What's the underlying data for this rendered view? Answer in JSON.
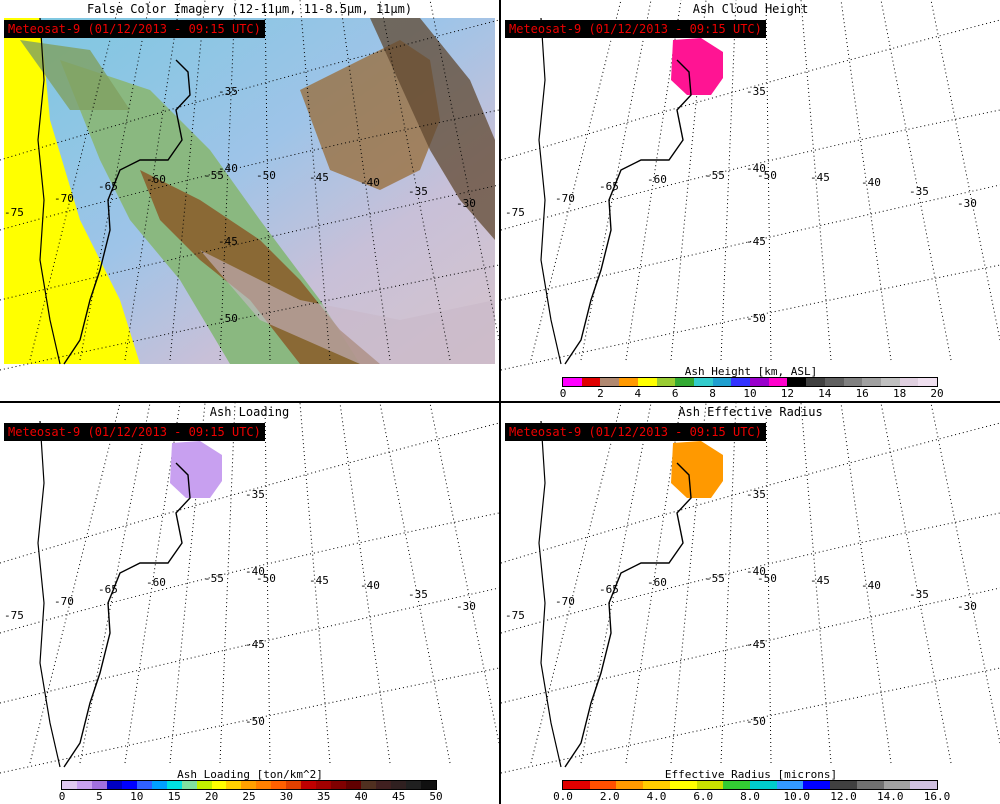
{
  "panels": [
    {
      "title": "False Color Imagery (12-11μm, 11-8.5μm, 11μm)",
      "tag": "Meteosat-9  (01/12/2013 - 09:15 UTC)"
    },
    {
      "title": "Ash Cloud Height",
      "tag": "Meteosat-9  (01/12/2013 - 09:15 UTC)"
    },
    {
      "title": "Ash Loading",
      "tag": "Meteosat-9  (01/12/2013 - 09:15 UTC)"
    },
    {
      "title": "Ash Effective Radius",
      "tag": "Meteosat-9  (01/12/2013 - 09:15 UTC)"
    }
  ],
  "grid_labels": {
    "lat": [
      "-35",
      "-40",
      "-45",
      "-50"
    ],
    "lon": [
      "-75",
      "-70",
      "-65",
      "-60",
      "-55",
      "-50",
      "-45",
      "-40",
      "-35",
      "-30"
    ]
  },
  "colorbars": {
    "height": {
      "title": "Ash Height [km, ASL]",
      "ticks": [
        "0",
        "2",
        "4",
        "6",
        "8",
        "10",
        "12",
        "14",
        "16",
        "18",
        "20"
      ],
      "colors": [
        "#ff00ff",
        "#e00000",
        "#b08870",
        "#ff9900",
        "#ffff00",
        "#99cc33",
        "#33aa33",
        "#33cccc",
        "#1f9fd0",
        "#3333ff",
        "#9900cc",
        "#ff00cc",
        "#000000",
        "#404040",
        "#606060",
        "#808080",
        "#a0a0a0",
        "#c0c0c0",
        "#e0d0e0",
        "#f0e0f0"
      ]
    },
    "loading": {
      "title": "Ash Loading [ton/km^2]",
      "ticks": [
        "0",
        "5",
        "10",
        "15",
        "20",
        "25",
        "30",
        "35",
        "40",
        "45",
        "50"
      ],
      "colors": [
        "#e0c8f0",
        "#c8a0f0",
        "#a070e0",
        "#0000c0",
        "#0000ff",
        "#3060ff",
        "#00a0ff",
        "#00e0e0",
        "#80e0a0",
        "#c0f000",
        "#ffff00",
        "#ffd000",
        "#ffa000",
        "#ff8000",
        "#ff6000",
        "#e04000",
        "#c00000",
        "#a00000",
        "#800000",
        "#600000",
        "#503020",
        "#402020",
        "#302020",
        "#202020",
        "#101010"
      ]
    },
    "radius": {
      "title": "Effective Radius [microns]",
      "ticks": [
        "0.0",
        "2.0",
        "4.0",
        "6.0",
        "8.0",
        "10.0",
        "12.0",
        "14.0",
        "16.0"
      ],
      "colors": [
        "#e00000",
        "#ff5000",
        "#ff9900",
        "#ffcc00",
        "#ffff00",
        "#c8e000",
        "#33cc33",
        "#00cccc",
        "#3399ff",
        "#0000ff",
        "#404040",
        "#707070",
        "#a0a0a0",
        "#d0c0e0"
      ]
    }
  }
}
